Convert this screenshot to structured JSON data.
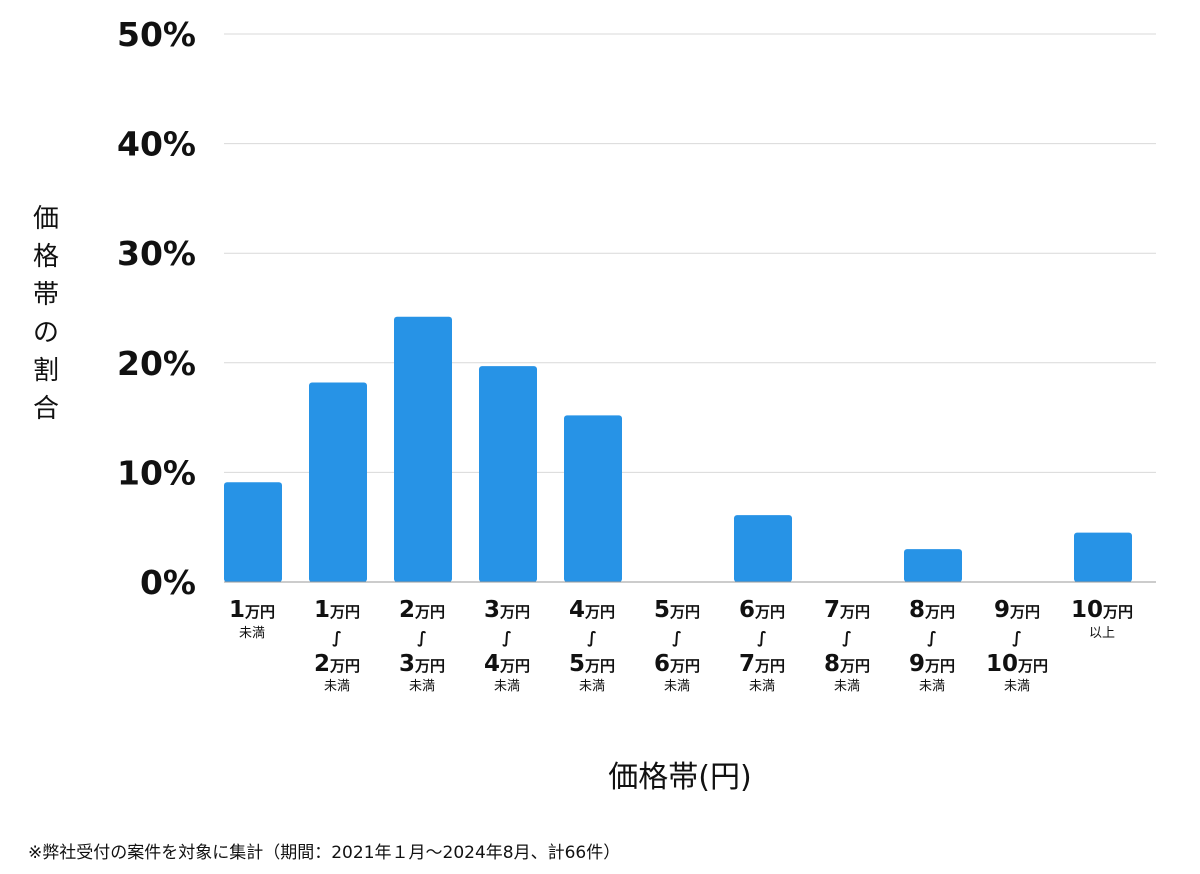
{
  "chart_data": {
    "type": "bar",
    "categories": [
      [
        "1",
        "未満"
      ],
      [
        "1",
        "2",
        "未満"
      ],
      [
        "2",
        "3",
        "未満"
      ],
      [
        "3",
        "4",
        "未満"
      ],
      [
        "4",
        "5",
        "未満"
      ],
      [
        "5",
        "6",
        "未満"
      ],
      [
        "6",
        "7",
        "未満"
      ],
      [
        "7",
        "8",
        "未満"
      ],
      [
        "8",
        "9",
        "未満"
      ],
      [
        "9",
        "10",
        "未満"
      ],
      [
        "10",
        "以上"
      ]
    ],
    "unit_label": "万円",
    "range_glyph": "∫",
    "values": [
      9.1,
      18.2,
      24.2,
      19.7,
      15.2,
      0,
      6.1,
      0,
      3.0,
      0,
      4.5
    ],
    "ylim": [
      0,
      50
    ],
    "yticks": [
      "0%",
      "10%",
      "20%",
      "30%",
      "40%",
      "50%"
    ],
    "ylabel": "価格帯の割合",
    "xlabel": "価格帯(円)",
    "bar_color": "#2793e6",
    "grid": true,
    "legend": "none"
  },
  "footnote": "※弊社受付の案件を対象に集計（期間：2021年１月～2024年8月、計66件）"
}
